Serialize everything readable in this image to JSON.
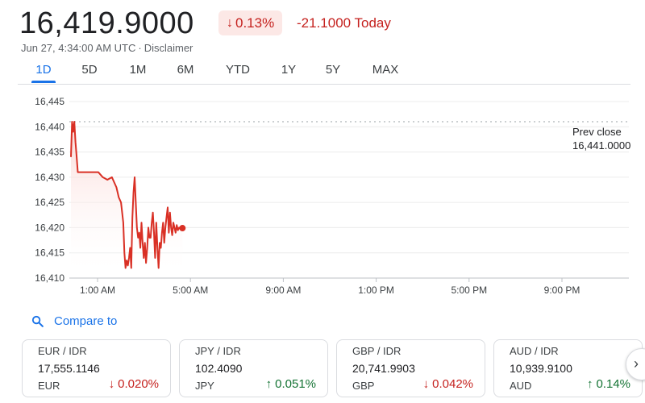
{
  "quote": {
    "price": "16,419.9000",
    "change_pct": "0.13%",
    "change_abs": "-21.1000 Today",
    "timestamp": "Jun 27, 4:34:00 AM UTC",
    "disclaimer": "Disclaimer",
    "direction": "down"
  },
  "tabs": [
    {
      "label": "1D",
      "active": true
    },
    {
      "label": "5D",
      "active": false
    },
    {
      "label": "1M",
      "active": false
    },
    {
      "label": "6M",
      "active": false
    },
    {
      "label": "YTD",
      "active": false
    },
    {
      "label": "1Y",
      "active": false
    },
    {
      "label": "5Y",
      "active": false
    },
    {
      "label": "MAX",
      "active": false
    }
  ],
  "chart_data": {
    "type": "line",
    "ylim": [
      16410,
      16445
    ],
    "y_ticks": [
      "16,445",
      "16,440",
      "16,435",
      "16,430",
      "16,425",
      "16,420",
      "16,415",
      "16,410"
    ],
    "y_tick_values": [
      16445,
      16440,
      16435,
      16430,
      16425,
      16420,
      16415,
      16410
    ],
    "x_tick_labels": [
      "1:00 AM",
      "5:00 AM",
      "9:00 AM",
      "1:00 PM",
      "5:00 PM",
      "9:00 PM"
    ],
    "x_tick_hours": [
      1,
      5,
      9,
      13,
      17,
      21
    ],
    "xlim_hours": [
      0,
      24
    ],
    "prev_close": {
      "label": "Prev close",
      "value_text": "16,441.0000",
      "value": 16441
    },
    "line_color": "#d93025",
    "series": [
      {
        "hours": [
          0.0,
          0.05,
          0.1,
          0.15,
          0.2,
          0.25,
          0.3,
          0.4,
          0.5,
          0.6,
          0.8,
          1.0,
          1.2,
          1.4,
          1.6,
          1.8,
          2.0,
          2.1,
          2.2,
          2.3,
          2.35,
          2.4,
          2.45,
          2.5,
          2.55,
          2.6,
          2.65,
          2.7,
          2.75,
          2.8,
          2.85,
          2.9,
          2.95,
          3.0,
          3.05,
          3.1,
          3.15,
          3.2,
          3.25,
          3.3,
          3.35,
          3.4,
          3.45,
          3.5,
          3.55,
          3.6,
          3.65,
          3.7,
          3.75,
          3.8,
          3.85,
          3.9,
          3.95,
          4.0,
          4.05,
          4.1,
          4.15,
          4.2,
          4.25,
          4.3,
          4.35,
          4.4,
          4.45,
          4.5,
          4.55,
          4.6,
          4.65,
          4.7,
          4.75,
          4.8,
          4.85,
          4.9
        ],
        "values": [
          16434,
          16441,
          16439,
          16441,
          16437,
          16434,
          16431,
          16431,
          16431,
          16431,
          16431,
          16431,
          16431,
          16430,
          16429.5,
          16430,
          16428,
          16426,
          16425,
          16421,
          16415,
          16412,
          16413.5,
          16412.5,
          16414,
          16416,
          16412,
          16422,
          16427,
          16430,
          16425,
          16420,
          16418,
          16419,
          16416,
          16421,
          16417,
          16414,
          16417,
          16413,
          16416,
          16420,
          16418,
          16418,
          16421,
          16423,
          16419,
          16414,
          16421,
          16416,
          16412,
          16417,
          16416,
          16419,
          16421,
          16417,
          16420,
          16422,
          16424,
          16419,
          16423,
          16420,
          16418.5,
          16421,
          16420,
          16419,
          16420.5,
          16419.5,
          16420,
          16420,
          16419.9,
          16419.9
        ]
      }
    ]
  },
  "compare": {
    "label": "Compare to"
  },
  "cards": [
    {
      "pair": "EUR / IDR",
      "rate": "17,555.1146",
      "code": "EUR",
      "pct": "0.020%",
      "direction": "down"
    },
    {
      "pair": "JPY / IDR",
      "rate": "102.4090",
      "code": "JPY",
      "pct": "0.051%",
      "direction": "up"
    },
    {
      "pair": "GBP / IDR",
      "rate": "20,741.9903",
      "code": "GBP",
      "pct": "0.042%",
      "direction": "down"
    },
    {
      "pair": "AUD / IDR",
      "rate": "10,939.9100",
      "code": "AUD",
      "pct": "0.14%",
      "direction": "up"
    }
  ],
  "icons": {
    "down_arrow": "arrow-down-icon",
    "up_arrow": "arrow-up-icon",
    "search": "search-icon",
    "next": "chevron-right-icon"
  },
  "colors": {
    "down": "#c5221f",
    "up": "#137333",
    "accent": "#1a73e8",
    "down_badge_bg": "#fce8e6"
  }
}
